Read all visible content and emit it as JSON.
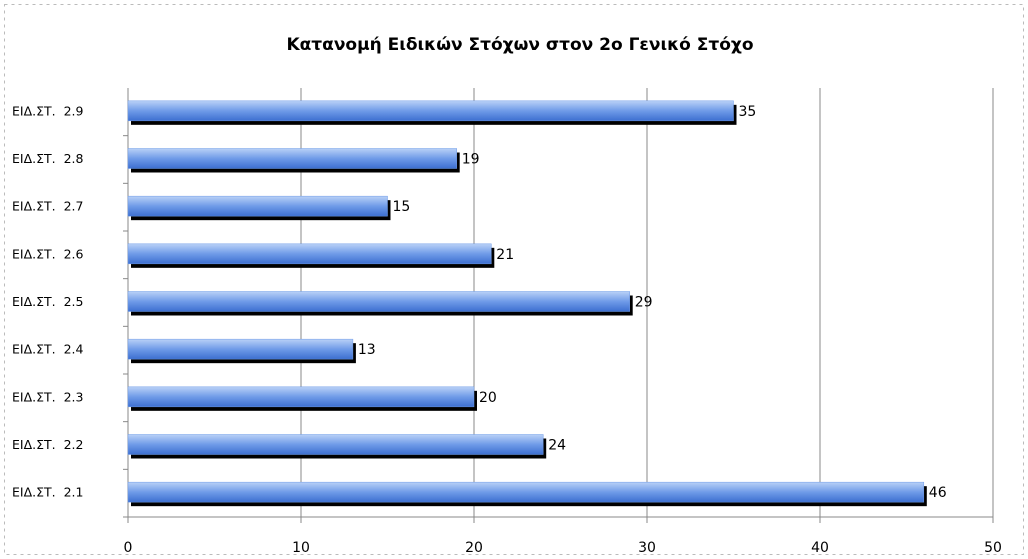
{
  "chart_data": {
    "type": "hbar",
    "title": "Κατανομή Ειδικών Στόχων στον 2ο Γενικό Στόχο",
    "categories": [
      "ΕΙΔ.ΣΤ.  2.1",
      "ΕΙΔ.ΣΤ.  2.2",
      "ΕΙΔ.ΣΤ.  2.3",
      "ΕΙΔ.ΣΤ.  2.4",
      "ΕΙΔ.ΣΤ.  2.5",
      "ΕΙΔ.ΣΤ.  2.6",
      "ΕΙΔ.ΣΤ.  2.7",
      "ΕΙΔ.ΣΤ.  2.8",
      "ΕΙΔ.ΣΤ.  2.9"
    ],
    "values": [
      46,
      24,
      20,
      13,
      29,
      21,
      15,
      19,
      35
    ],
    "color": "#6f9be8",
    "xlim": [
      0,
      50
    ],
    "xticks": [
      0,
      10,
      20,
      30,
      40,
      50
    ],
    "grid": true
  }
}
